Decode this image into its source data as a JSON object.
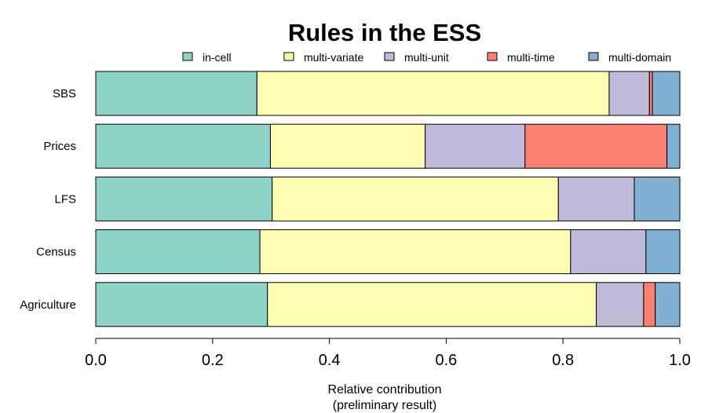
{
  "chart_data": {
    "type": "bar",
    "orientation": "horizontal",
    "stacked": true,
    "title": "Rules in the ESS",
    "xlabel_lines": [
      "Relative contribution",
      "(preliminary result)"
    ],
    "ylabel": "",
    "xlim": [
      0,
      1
    ],
    "xticks": [
      0.0,
      0.2,
      0.4,
      0.6,
      0.8,
      1.0
    ],
    "xtick_labels": [
      "0.0",
      "0.2",
      "0.4",
      "0.6",
      "0.8",
      "1.0"
    ],
    "grid": false,
    "legend_position": "top",
    "categories": [
      "SBS",
      "Prices",
      "LFS",
      "Census",
      "Agriculture"
    ],
    "series": [
      {
        "name": "in-cell",
        "color": "#8DD3C7",
        "values": [
          0.276,
          0.299,
          0.302,
          0.281,
          0.294
        ]
      },
      {
        "name": "multi-variate",
        "color": "#FFFFB3",
        "values": [
          0.603,
          0.265,
          0.49,
          0.532,
          0.563
        ]
      },
      {
        "name": "multi-unit",
        "color": "#BEBADA",
        "values": [
          0.069,
          0.171,
          0.13,
          0.129,
          0.081
        ]
      },
      {
        "name": "multi-time",
        "color": "#FB8072",
        "values": [
          0.005,
          0.243,
          0.0,
          0.0,
          0.02
        ]
      },
      {
        "name": "multi-domain",
        "color": "#80B1D3",
        "values": [
          0.047,
          0.022,
          0.078,
          0.058,
          0.042
        ]
      }
    ]
  }
}
